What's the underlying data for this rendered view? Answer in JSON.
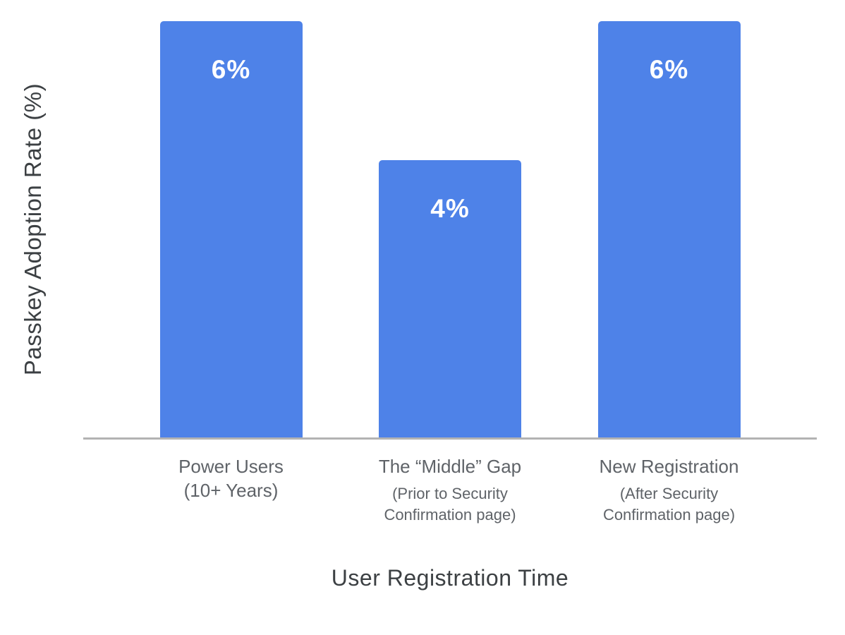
{
  "chart_data": {
    "type": "bar",
    "title": "",
    "xlabel": "User Registration Time",
    "ylabel": "Passkey Adoption Rate (%)",
    "categories": [
      {
        "label": "Power Users",
        "sub_lines": [
          "(10+ Years)"
        ],
        "sub_style": "large"
      },
      {
        "label": "The “Middle” Gap",
        "sub_lines": [
          "(Prior to Security",
          "Confirmation page)"
        ],
        "sub_style": "small"
      },
      {
        "label": "New Registration",
        "sub_lines": [
          "(After Security",
          "Confirmation page)"
        ],
        "sub_style": "small"
      }
    ],
    "values": [
      6,
      4,
      6
    ],
    "value_labels": [
      "6%",
      "4%",
      "6%"
    ],
    "ylim": [
      0,
      6.3
    ],
    "grid": false,
    "legend": false,
    "colors": {
      "bar": "#4e82e8",
      "value_label": "#ffffff",
      "axis_line": "#b3b3b3",
      "category_label": "#5f6368",
      "axis_title": "#3c4043"
    }
  }
}
